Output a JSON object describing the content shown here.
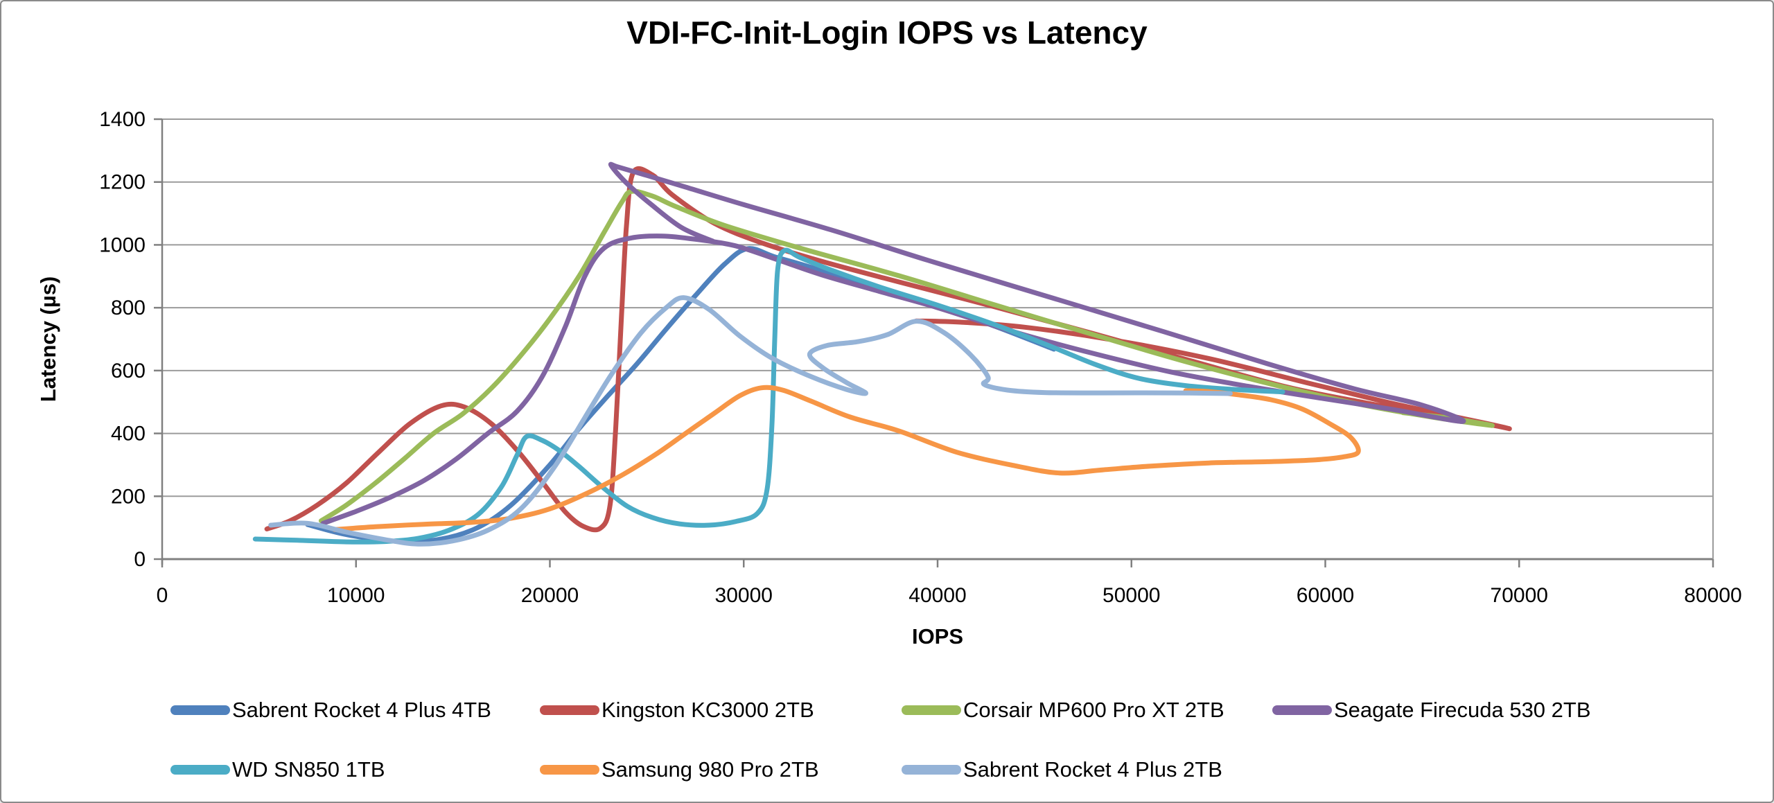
{
  "chart_data": {
    "type": "line",
    "title": "VDI-FC-Init-Login IOPS vs Latency",
    "xlabel": "IOPS",
    "ylabel": "Latency (µs)",
    "xlim": [
      0,
      80000
    ],
    "ylim": [
      0,
      1400
    ],
    "xticks": [
      0,
      10000,
      20000,
      30000,
      40000,
      50000,
      60000,
      70000,
      80000
    ],
    "yticks": [
      0,
      200,
      400,
      600,
      800,
      1000,
      1200,
      1400
    ],
    "grid": "horizontal gridlines, y-axis left, x-axis bottom, right border line",
    "legend_position": "bottom, two rows",
    "colors": {
      "axis": "#808080",
      "gridline": "#9b9b9b",
      "text": "#000000"
    },
    "series": [
      {
        "name": "Sabrent Rocket 4 Plus 4TB",
        "color": "#4F81BD",
        "points": [
          [
            7500,
            110
          ],
          [
            9500,
            78
          ],
          [
            12000,
            57
          ],
          [
            14200,
            62
          ],
          [
            16200,
            98
          ],
          [
            18000,
            172
          ],
          [
            20000,
            300
          ],
          [
            21500,
            415
          ],
          [
            23000,
            520
          ],
          [
            24500,
            622
          ],
          [
            26000,
            732
          ],
          [
            27500,
            838
          ],
          [
            29000,
            938
          ],
          [
            30200,
            988
          ],
          [
            31600,
            962
          ],
          [
            33500,
            928
          ],
          [
            36500,
            870
          ],
          [
            40000,
            806
          ],
          [
            43000,
            740
          ],
          [
            46000,
            668
          ]
        ]
      },
      {
        "name": "Kingston KC3000 2TB",
        "color": "#C0504D",
        "points": [
          [
            5400,
            96
          ],
          [
            6600,
            122
          ],
          [
            8000,
            172
          ],
          [
            9500,
            242
          ],
          [
            11200,
            342
          ],
          [
            12800,
            432
          ],
          [
            14400,
            488
          ],
          [
            15600,
            484
          ],
          [
            17000,
            430
          ],
          [
            18400,
            340
          ],
          [
            19700,
            238
          ],
          [
            20800,
            150
          ],
          [
            21700,
            105
          ],
          [
            22600,
            98
          ],
          [
            23100,
            170
          ],
          [
            23400,
            420
          ],
          [
            23700,
            780
          ],
          [
            23950,
            1060
          ],
          [
            24300,
            1230
          ],
          [
            25300,
            1222
          ],
          [
            26300,
            1160
          ],
          [
            28500,
            1068
          ],
          [
            31000,
            1005
          ],
          [
            34000,
            948
          ],
          [
            38000,
            882
          ],
          [
            43000,
            802
          ],
          [
            48000,
            718
          ],
          [
            53000,
            632
          ],
          [
            58000,
            548
          ],
          [
            62000,
            498
          ],
          [
            65500,
            458
          ],
          [
            68300,
            430
          ],
          [
            69500,
            415
          ],
          [
            68300,
            432
          ],
          [
            66000,
            462
          ],
          [
            63000,
            502
          ],
          [
            59000,
            562
          ],
          [
            54000,
            638
          ],
          [
            49000,
            698
          ],
          [
            44500,
            738
          ],
          [
            41200,
            754
          ],
          [
            38900,
            758
          ]
        ]
      },
      {
        "name": "Corsair MP600 Pro XT 2TB",
        "color": "#9BBB59",
        "points": [
          [
            8200,
            122
          ],
          [
            9500,
            172
          ],
          [
            11000,
            242
          ],
          [
            12500,
            320
          ],
          [
            14000,
            400
          ],
          [
            15500,
            462
          ],
          [
            17000,
            545
          ],
          [
            18500,
            648
          ],
          [
            20000,
            765
          ],
          [
            21500,
            900
          ],
          [
            22800,
            1040
          ],
          [
            23700,
            1135
          ],
          [
            24200,
            1170
          ],
          [
            25300,
            1155
          ],
          [
            26500,
            1122
          ],
          [
            29000,
            1062
          ],
          [
            33000,
            988
          ],
          [
            38000,
            902
          ],
          [
            43000,
            808
          ],
          [
            48000,
            715
          ],
          [
            53000,
            625
          ],
          [
            58000,
            545
          ],
          [
            62000,
            490
          ],
          [
            65500,
            452
          ],
          [
            68600,
            425
          ],
          [
            66500,
            448
          ],
          [
            64000,
            466
          ]
        ]
      },
      {
        "name": "Seagate Firecuda 530 2TB",
        "color": "#8064A2",
        "points": [
          [
            8300,
            114
          ],
          [
            10000,
            152
          ],
          [
            11700,
            195
          ],
          [
            13500,
            250
          ],
          [
            15200,
            320
          ],
          [
            16800,
            400
          ],
          [
            18300,
            470
          ],
          [
            19600,
            580
          ],
          [
            20800,
            740
          ],
          [
            21800,
            900
          ],
          [
            22800,
            990
          ],
          [
            24200,
            1022
          ],
          [
            25800,
            1028
          ],
          [
            27500,
            1018
          ],
          [
            29500,
            998
          ],
          [
            31500,
            958
          ],
          [
            34000,
            905
          ],
          [
            37000,
            852
          ],
          [
            40000,
            800
          ],
          [
            44000,
            722
          ],
          [
            48000,
            655
          ],
          [
            52000,
            596
          ],
          [
            56000,
            550
          ],
          [
            60000,
            510
          ],
          [
            63500,
            476
          ],
          [
            67100,
            438
          ],
          [
            65000,
            490
          ],
          [
            61500,
            542
          ],
          [
            57000,
            622
          ],
          [
            51500,
            727
          ],
          [
            45500,
            839
          ],
          [
            39500,
            951
          ],
          [
            34500,
            1048
          ],
          [
            30000,
            1128
          ],
          [
            27000,
            1184
          ],
          [
            25000,
            1221
          ],
          [
            23500,
            1248
          ],
          [
            23160,
            1253
          ],
          [
            23900,
            1200
          ],
          [
            25200,
            1130
          ],
          [
            26800,
            1055
          ],
          [
            28400,
            1012
          ]
        ]
      },
      {
        "name": "WD SN850 1TB",
        "color": "#4BACC6",
        "points": [
          [
            4800,
            64
          ],
          [
            7000,
            60
          ],
          [
            9500,
            55
          ],
          [
            11500,
            56
          ],
          [
            13200,
            66
          ],
          [
            14800,
            92
          ],
          [
            16300,
            142
          ],
          [
            17500,
            230
          ],
          [
            18300,
            330
          ],
          [
            18800,
            390
          ],
          [
            19600,
            378
          ],
          [
            20500,
            345
          ],
          [
            21500,
            295
          ],
          [
            22700,
            230
          ],
          [
            24000,
            168
          ],
          [
            25300,
            132
          ],
          [
            26700,
            112
          ],
          [
            28200,
            108
          ],
          [
            29600,
            120
          ],
          [
            30700,
            145
          ],
          [
            31200,
            220
          ],
          [
            31450,
            420
          ],
          [
            31600,
            700
          ],
          [
            31750,
            920
          ],
          [
            32100,
            982
          ],
          [
            32900,
            960
          ],
          [
            34500,
            920
          ],
          [
            37000,
            866
          ],
          [
            40000,
            808
          ],
          [
            43000,
            745
          ],
          [
            45800,
            678
          ],
          [
            48200,
            618
          ],
          [
            50400,
            575
          ],
          [
            52800,
            552
          ],
          [
            55300,
            540
          ],
          [
            57800,
            532
          ]
        ]
      },
      {
        "name": "Samsung 980 Pro 2TB",
        "color": "#F79646",
        "points": [
          [
            8900,
            94
          ],
          [
            11000,
            103
          ],
          [
            13500,
            111
          ],
          [
            16000,
            117
          ],
          [
            18000,
            130
          ],
          [
            20000,
            160
          ],
          [
            22000,
            212
          ],
          [
            23800,
            270
          ],
          [
            25500,
            335
          ],
          [
            27000,
            400
          ],
          [
            28500,
            465
          ],
          [
            29800,
            520
          ],
          [
            30900,
            545
          ],
          [
            32000,
            538
          ],
          [
            33500,
            502
          ],
          [
            35500,
            452
          ],
          [
            38000,
            408
          ],
          [
            41000,
            340
          ],
          [
            44000,
            297
          ],
          [
            46300,
            274
          ],
          [
            48500,
            284
          ],
          [
            51000,
            296
          ],
          [
            54000,
            306
          ],
          [
            57000,
            310
          ],
          [
            59500,
            316
          ],
          [
            61000,
            326
          ],
          [
            61700,
            342
          ],
          [
            61300,
            388
          ],
          [
            60200,
            432
          ],
          [
            58800,
            478
          ],
          [
            57200,
            507
          ],
          [
            55500,
            523
          ],
          [
            54000,
            533
          ],
          [
            52800,
            536
          ]
        ]
      },
      {
        "name": "Sabrent Rocket 4 Plus 2TB",
        "color": "#95B3D7",
        "points": [
          [
            5600,
            108
          ],
          [
            7500,
            114
          ],
          [
            9500,
            86
          ],
          [
            11500,
            62
          ],
          [
            13200,
            48
          ],
          [
            15000,
            58
          ],
          [
            16800,
            92
          ],
          [
            18500,
            160
          ],
          [
            20200,
            290
          ],
          [
            21800,
            450
          ],
          [
            23200,
            590
          ],
          [
            24700,
            720
          ],
          [
            26000,
            800
          ],
          [
            26900,
            832
          ],
          [
            28200,
            795
          ],
          [
            29800,
            710
          ],
          [
            31500,
            638
          ],
          [
            33500,
            580
          ],
          [
            35300,
            540
          ],
          [
            36300,
            528
          ],
          [
            35300,
            562
          ],
          [
            34100,
            608
          ],
          [
            33400,
            652
          ],
          [
            34300,
            680
          ],
          [
            35900,
            692
          ],
          [
            37400,
            714
          ],
          [
            38900,
            757
          ],
          [
            40300,
            722
          ],
          [
            41700,
            650
          ],
          [
            42600,
            580
          ],
          [
            42400,
            556
          ],
          [
            43600,
            538
          ],
          [
            45500,
            530
          ],
          [
            48500,
            529
          ],
          [
            52000,
            529
          ],
          [
            55100,
            527
          ]
        ]
      }
    ],
    "legend_rows": [
      [
        0,
        1,
        2,
        3
      ],
      [
        4,
        5,
        6
      ]
    ]
  }
}
